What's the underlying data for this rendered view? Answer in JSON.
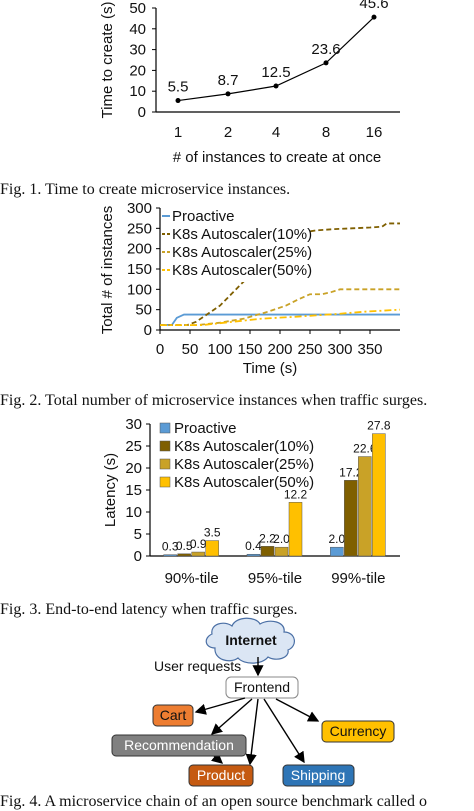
{
  "captions": [
    "Fig. 1.    Time to create microservice instances.",
    "Fig. 2.    Total number of microservice instances when traffic surges.",
    "Fig. 3.    End-to-end latency when traffic surges.",
    "Fig. 4.    A microservice chain of an open source benchmark called o"
  ],
  "chart_data": [
    {
      "type": "line",
      "title": "",
      "xlabel": "# of instances to create at once",
      "ylabel": "Time to create (s)",
      "categories": [
        "1",
        "2",
        "4",
        "8",
        "16"
      ],
      "values": [
        5.5,
        8.7,
        12.5,
        23.6,
        45.6
      ],
      "value_labels": [
        "5.5",
        "8.7",
        "12.5",
        "23.6",
        "45.6"
      ],
      "ylim": [
        0,
        50
      ],
      "yticks": [
        "0",
        "10",
        "20",
        "30",
        "40",
        "50"
      ],
      "grid": false,
      "series_color": "#000000"
    },
    {
      "type": "line",
      "title": "",
      "xlabel": "Time (s)",
      "ylabel": "Total # of instances",
      "xlim": [
        0,
        400
      ],
      "ylim": [
        0,
        300
      ],
      "xticks": [
        "0",
        "50",
        "100",
        "150",
        "200",
        "250",
        "300",
        "350"
      ],
      "yticks": [
        "0",
        "50",
        "100",
        "150",
        "200",
        "250",
        "300"
      ],
      "legend": "top-left",
      "series": [
        {
          "name": "Proactive",
          "color": "#5b9bd5",
          "style": "solid",
          "points": [
            [
              0,
              12
            ],
            [
              20,
              13
            ],
            [
              28,
              30
            ],
            [
              40,
              38
            ],
            [
              400,
              38
            ]
          ]
        },
        {
          "name": "K8s Autoscaler(10%)",
          "color": "#7f5f00",
          "style": "dashed",
          "points": [
            [
              0,
              12
            ],
            [
              45,
              12
            ],
            [
              60,
              20
            ],
            [
              80,
              40
            ],
            [
              100,
              60
            ],
            [
              120,
              90
            ],
            [
              140,
              120
            ],
            [
              160,
              150
            ],
            [
              180,
              175
            ],
            [
              200,
              200
            ],
            [
              220,
              225
            ],
            [
              240,
              240
            ],
            [
              260,
              245
            ],
            [
              290,
              248
            ],
            [
              320,
              250
            ],
            [
              350,
              252
            ],
            [
              370,
              254
            ],
            [
              378,
              262
            ],
            [
              400,
              262
            ]
          ]
        },
        {
          "name": "K8s Autoscaler(25%)",
          "color": "#c9a227",
          "style": "dashed",
          "points": [
            [
              0,
              12
            ],
            [
              60,
              12
            ],
            [
              100,
              18
            ],
            [
              140,
              28
            ],
            [
              180,
              45
            ],
            [
              210,
              60
            ],
            [
              230,
              75
            ],
            [
              250,
              88
            ],
            [
              270,
              88
            ],
            [
              285,
              93
            ],
            [
              300,
              100
            ],
            [
              400,
              100
            ]
          ]
        },
        {
          "name": "K8s Autoscaler(50%)",
          "color": "#ffc000",
          "style": "dashdot",
          "points": [
            [
              0,
              12
            ],
            [
              70,
              12
            ],
            [
              120,
              20
            ],
            [
              170,
              28
            ],
            [
              220,
              32
            ],
            [
              260,
              36
            ],
            [
              300,
              40
            ],
            [
              340,
              45
            ],
            [
              400,
              50
            ]
          ]
        }
      ]
    },
    {
      "type": "bar",
      "title": "",
      "xlabel": "",
      "ylabel": "Latency (s)",
      "categories": [
        "90%-tile",
        "95%-tile",
        "99%-tile"
      ],
      "ylim": [
        0,
        30
      ],
      "yticks": [
        "0",
        "5",
        "10",
        "15",
        "20",
        "25",
        "30"
      ],
      "legend": "top-left",
      "series": [
        {
          "name": "Proactive",
          "color": "#5b9bd5",
          "values": [
            0.3,
            0.4,
            2.0
          ],
          "labels": [
            "0.3",
            "0.4",
            "2.0"
          ]
        },
        {
          "name": "K8s Autoscaler(10%)",
          "color": "#7f5f00",
          "values": [
            0.5,
            2.2,
            17.2
          ],
          "labels": [
            "0.5",
            "2.2",
            "17.2"
          ]
        },
        {
          "name": "K8s Autoscaler(25%)",
          "color": "#c9a227",
          "values": [
            0.9,
            2.0,
            22.6
          ],
          "labels": [
            "0.9",
            "2.0",
            "22.6"
          ]
        },
        {
          "name": "K8s Autoscaler(50%)",
          "color": "#ffc000",
          "values": [
            3.5,
            12.2,
            27.8
          ],
          "labels": [
            "3.5",
            "12.2",
            "27.8"
          ]
        }
      ]
    }
  ],
  "diagram": {
    "internet": "Internet",
    "user_requests": "User requests",
    "frontend": "Frontend",
    "cart": "Cart",
    "recommendation": "Recommendation",
    "product": "Product",
    "shipping": "Shipping",
    "currency": "Currency",
    "colors": {
      "cloud": "#dbe6f4",
      "cart": "#ed7d31",
      "recommendation": "#808080",
      "product": "#c55a11",
      "shipping": "#2e75b6",
      "currency": "#ffc000"
    }
  }
}
